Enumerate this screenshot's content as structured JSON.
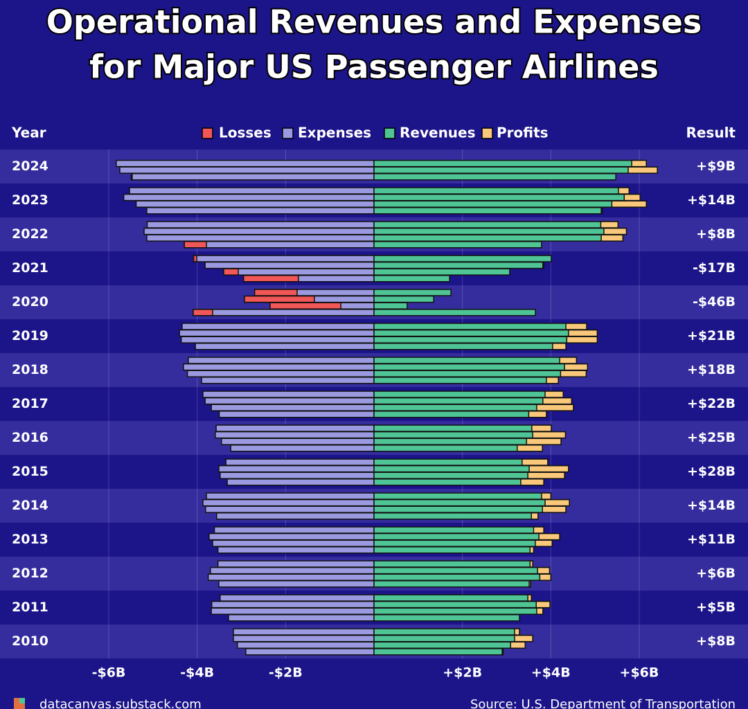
{
  "chart_data": {
    "type": "diverging-bar",
    "title": [
      "Operational Revenues and Expenses",
      "for Major US Passenger Airlines"
    ],
    "category_header": "Year",
    "result_header": "Result",
    "series": [
      {
        "name": "Losses",
        "color": "#f25757"
      },
      {
        "name": "Expenses",
        "color": "#9b9ae0",
        "values": [
          [
            null,
            5.83,
            5.75,
            5.49
          ],
          [
            5.53,
            5.66,
            5.38,
            5.14
          ],
          [
            5.13,
            5.2,
            5.14,
            4.29
          ],
          [
            4.08,
            3.82,
            3.4,
            2.95
          ],
          [
            2.7,
            2.93,
            2.35,
            4.09
          ],
          [
            4.34,
            4.4,
            4.36,
            4.04
          ],
          [
            4.2,
            4.31,
            4.22,
            3.9
          ],
          [
            3.87,
            3.82,
            3.68,
            3.5
          ],
          [
            3.57,
            3.59,
            3.45,
            3.24
          ],
          [
            3.35,
            3.51,
            3.48,
            3.32
          ],
          [
            3.79,
            3.87,
            3.81,
            3.56
          ],
          [
            3.61,
            3.73,
            3.65,
            3.53
          ],
          [
            3.53,
            3.7,
            3.75,
            3.51
          ],
          [
            3.48,
            3.67,
            3.68,
            3.29
          ],
          [
            3.18,
            3.18,
            3.09,
            2.9
          ]
        ]
      },
      {
        "name": "Revenues",
        "color": "#4fc495",
        "values": [
          [
            null,
            6.16,
            6.41,
            5.47
          ],
          [
            5.77,
            6.02,
            6.16,
            5.16
          ],
          [
            5.52,
            5.71,
            5.63,
            3.79
          ],
          [
            4.01,
            3.84,
            3.07,
            1.71
          ],
          [
            1.74,
            1.35,
            0.75,
            3.65
          ],
          [
            4.81,
            5.05,
            5.05,
            4.34
          ],
          [
            4.58,
            4.83,
            4.8,
            4.17
          ],
          [
            4.28,
            4.47,
            4.51,
            3.9
          ],
          [
            4.01,
            4.33,
            4.23,
            3.81
          ],
          [
            3.93,
            4.4,
            4.31,
            3.84
          ],
          [
            4.0,
            4.42,
            4.34,
            3.71
          ],
          [
            3.84,
            4.2,
            4.03,
            3.61
          ],
          [
            3.59,
            3.97,
            4.0,
            3.54
          ],
          [
            3.56,
            3.98,
            3.82,
            3.29
          ],
          [
            3.29,
            3.59,
            3.42,
            2.92
          ]
        ]
      },
      {
        "name": "Profits",
        "color": "#f9c87a"
      }
    ],
    "categories": [
      "2024",
      "2023",
      "2022",
      "2021",
      "2020",
      "2019",
      "2018",
      "2017",
      "2016",
      "2015",
      "2014",
      "2013",
      "2012",
      "2011",
      "2010"
    ],
    "results": [
      {
        "value": 9,
        "label": "+$9B"
      },
      {
        "value": 14,
        "label": "+$14B"
      },
      {
        "value": 8,
        "label": "+$8B"
      },
      {
        "value": -17,
        "label": "-$17B"
      },
      {
        "value": -46,
        "label": "-$46B"
      },
      {
        "value": 21,
        "label": "+$21B"
      },
      {
        "value": 18,
        "label": "+$18B"
      },
      {
        "value": 22,
        "label": "+$22B"
      },
      {
        "value": 25,
        "label": "+$25B"
      },
      {
        "value": 28,
        "label": "+$28B"
      },
      {
        "value": 14,
        "label": "+$14B"
      },
      {
        "value": 11,
        "label": "+$11B"
      },
      {
        "value": 6,
        "label": "+$6B"
      },
      {
        "value": 5,
        "label": "+$5B"
      },
      {
        "value": 8,
        "label": "+$8B"
      }
    ],
    "xlim": [
      -8.46,
      8.46
    ],
    "xticks": [
      {
        "value": -6,
        "label": "-$6B"
      },
      {
        "value": -4,
        "label": "-$4B"
      },
      {
        "value": -2,
        "label": "-$2B"
      },
      {
        "value": 2,
        "label": "+$2B"
      },
      {
        "value": 4,
        "label": "+$4B"
      },
      {
        "value": 6,
        "label": "+$6B"
      }
    ],
    "grid": true,
    "footer_left": "datacanvas.substack.com",
    "footer_right": "Source: U.S. Department of Transportation"
  }
}
